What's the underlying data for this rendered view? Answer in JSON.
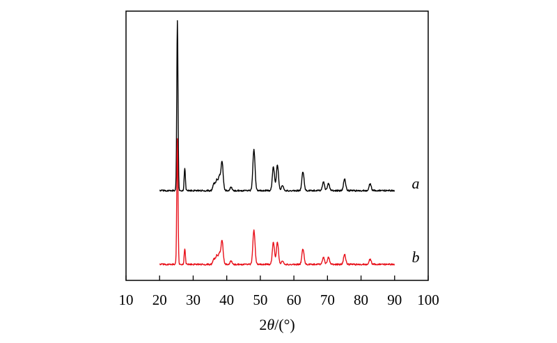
{
  "chart_data": {
    "type": "line",
    "title": "",
    "xlabel": "2θ/(°)",
    "xlabel_prefix": "2",
    "xlabel_symbol": "θ",
    "xlabel_suffix": "/(°)",
    "ylabel": "",
    "xlim": [
      10,
      100
    ],
    "xticks": [
      "10",
      "20",
      "30",
      "40",
      "50",
      "60",
      "70",
      "80",
      "90",
      "100"
    ],
    "grid": false,
    "series": [
      {
        "name": "a",
        "color": "#000000",
        "baseline": 0,
        "peaks": [
          {
            "x": 25.3,
            "y": 100
          },
          {
            "x": 27.5,
            "y": 13
          },
          {
            "x": 36.2,
            "y": 4
          },
          {
            "x": 37.0,
            "y": 6
          },
          {
            "x": 37.8,
            "y": 8
          },
          {
            "x": 38.6,
            "y": 17
          },
          {
            "x": 41.3,
            "y": 2
          },
          {
            "x": 48.1,
            "y": 24
          },
          {
            "x": 53.9,
            "y": 14
          },
          {
            "x": 55.1,
            "y": 15
          },
          {
            "x": 56.6,
            "y": 3
          },
          {
            "x": 62.7,
            "y": 11
          },
          {
            "x": 68.8,
            "y": 5
          },
          {
            "x": 70.3,
            "y": 4
          },
          {
            "x": 75.1,
            "y": 7
          },
          {
            "x": 82.7,
            "y": 4
          }
        ]
      },
      {
        "name": "b",
        "color": "#e8101a",
        "baseline": 0,
        "peaks": [
          {
            "x": 25.3,
            "y": 74
          },
          {
            "x": 27.5,
            "y": 9
          },
          {
            "x": 36.2,
            "y": 3
          },
          {
            "x": 37.0,
            "y": 5
          },
          {
            "x": 37.8,
            "y": 6
          },
          {
            "x": 38.6,
            "y": 14
          },
          {
            "x": 41.3,
            "y": 2
          },
          {
            "x": 48.1,
            "y": 20
          },
          {
            "x": 53.9,
            "y": 13
          },
          {
            "x": 55.1,
            "y": 13
          },
          {
            "x": 56.6,
            "y": 2
          },
          {
            "x": 62.7,
            "y": 9
          },
          {
            "x": 68.8,
            "y": 4
          },
          {
            "x": 70.3,
            "y": 4
          },
          {
            "x": 75.1,
            "y": 6
          },
          {
            "x": 82.7,
            "y": 3
          }
        ]
      }
    ]
  }
}
